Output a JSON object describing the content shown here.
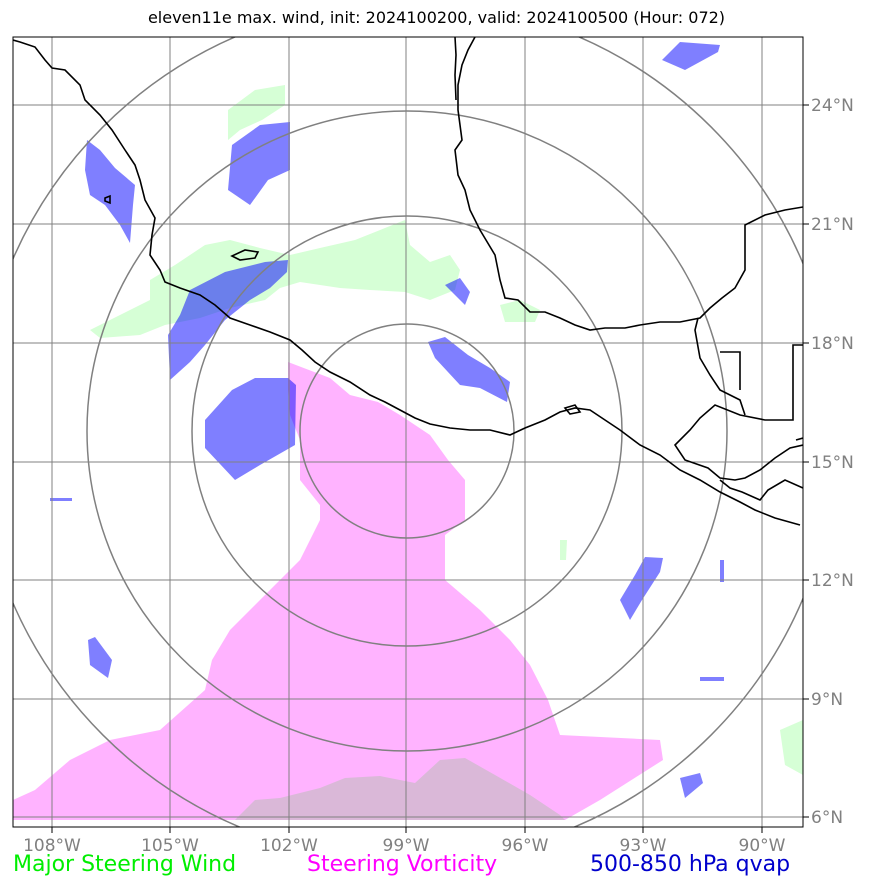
{
  "title": "eleven11e max. wind, init: 2024100200, valid: 2024100500 (Hour: 072)",
  "lat_labels": [
    "24°N",
    "21°N",
    "18°N",
    "15°N",
    "12°N",
    "9°N",
    "6°N"
  ],
  "lon_labels": [
    "108°W",
    "105°W",
    "102°W",
    "99°W",
    "96°W",
    "93°W",
    "90°W"
  ],
  "legend": {
    "wind": "Major Steering Wind",
    "vorticity": "Steering Vorticity",
    "qvap": "500-850 hPa qvap"
  },
  "colors": {
    "wind": "#00ee00",
    "vorticity": "#ff00ff",
    "qvap": "#0000cc",
    "grid": "#808080"
  }
}
